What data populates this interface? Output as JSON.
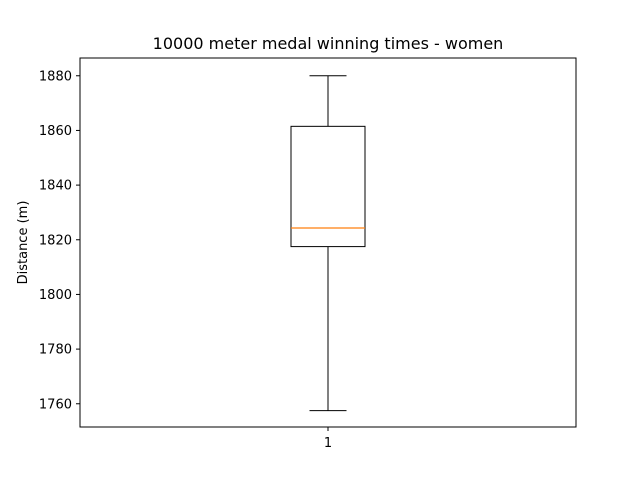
{
  "chart_data": {
    "type": "box",
    "title": "10000 meter medal winning times - women",
    "xlabel": "",
    "ylabel": "Distance (m)",
    "categories": [
      "1"
    ],
    "ylim": [
      1751.5,
      1886.5
    ],
    "yticks": [
      1760,
      1780,
      1800,
      1820,
      1840,
      1860,
      1880
    ],
    "boxes": [
      {
        "category": "1",
        "whisker_low": 1757.5,
        "q1": 1817.5,
        "median": 1824.3,
        "q3": 1861.5,
        "whisker_high": 1880
      }
    ],
    "colors": {
      "box": "#000000",
      "median": "#ff7f0e",
      "axes": "#000000"
    },
    "grid": false
  }
}
